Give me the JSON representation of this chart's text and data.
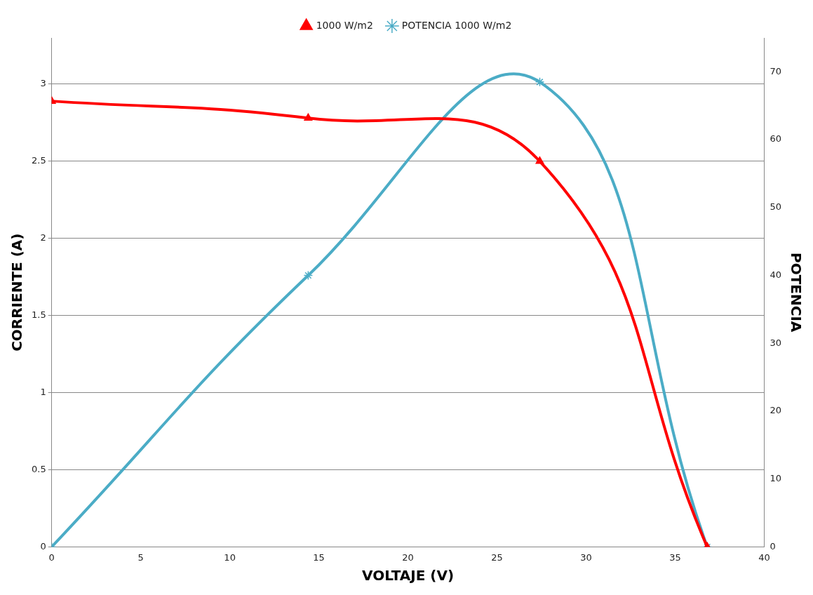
{
  "chart_data": {
    "type": "line",
    "xlabel": "VOLTAJE (V)",
    "ylabel": "CORRIENTE (A)",
    "y2label": "POTENCIA",
    "x": [
      0,
      14.4,
      27.4,
      36.8
    ],
    "series": [
      {
        "name": "1000 W/m2",
        "color": "#ff0000",
        "marker": "triangle",
        "values": [
          2.89,
          2.78,
          2.5,
          0
        ]
      },
      {
        "name": "POTENCIA 1000 W/m2",
        "color": "#4bacc6",
        "marker": "cross",
        "axis": "y2",
        "values": [
          0,
          40,
          68.5,
          0
        ]
      }
    ],
    "xlim": [
      0,
      40
    ],
    "xticks": [
      0,
      5,
      10,
      15,
      20,
      25,
      30,
      35,
      40
    ],
    "ylim": [
      0,
      3.3
    ],
    "yticks": [
      0,
      0.5,
      1,
      1.5,
      2,
      2.5,
      3
    ],
    "y2lim": [
      0,
      75
    ],
    "y2ticks": [
      0,
      10,
      20,
      30,
      40,
      50,
      60,
      70
    ],
    "grid": "y",
    "legend": "top"
  }
}
